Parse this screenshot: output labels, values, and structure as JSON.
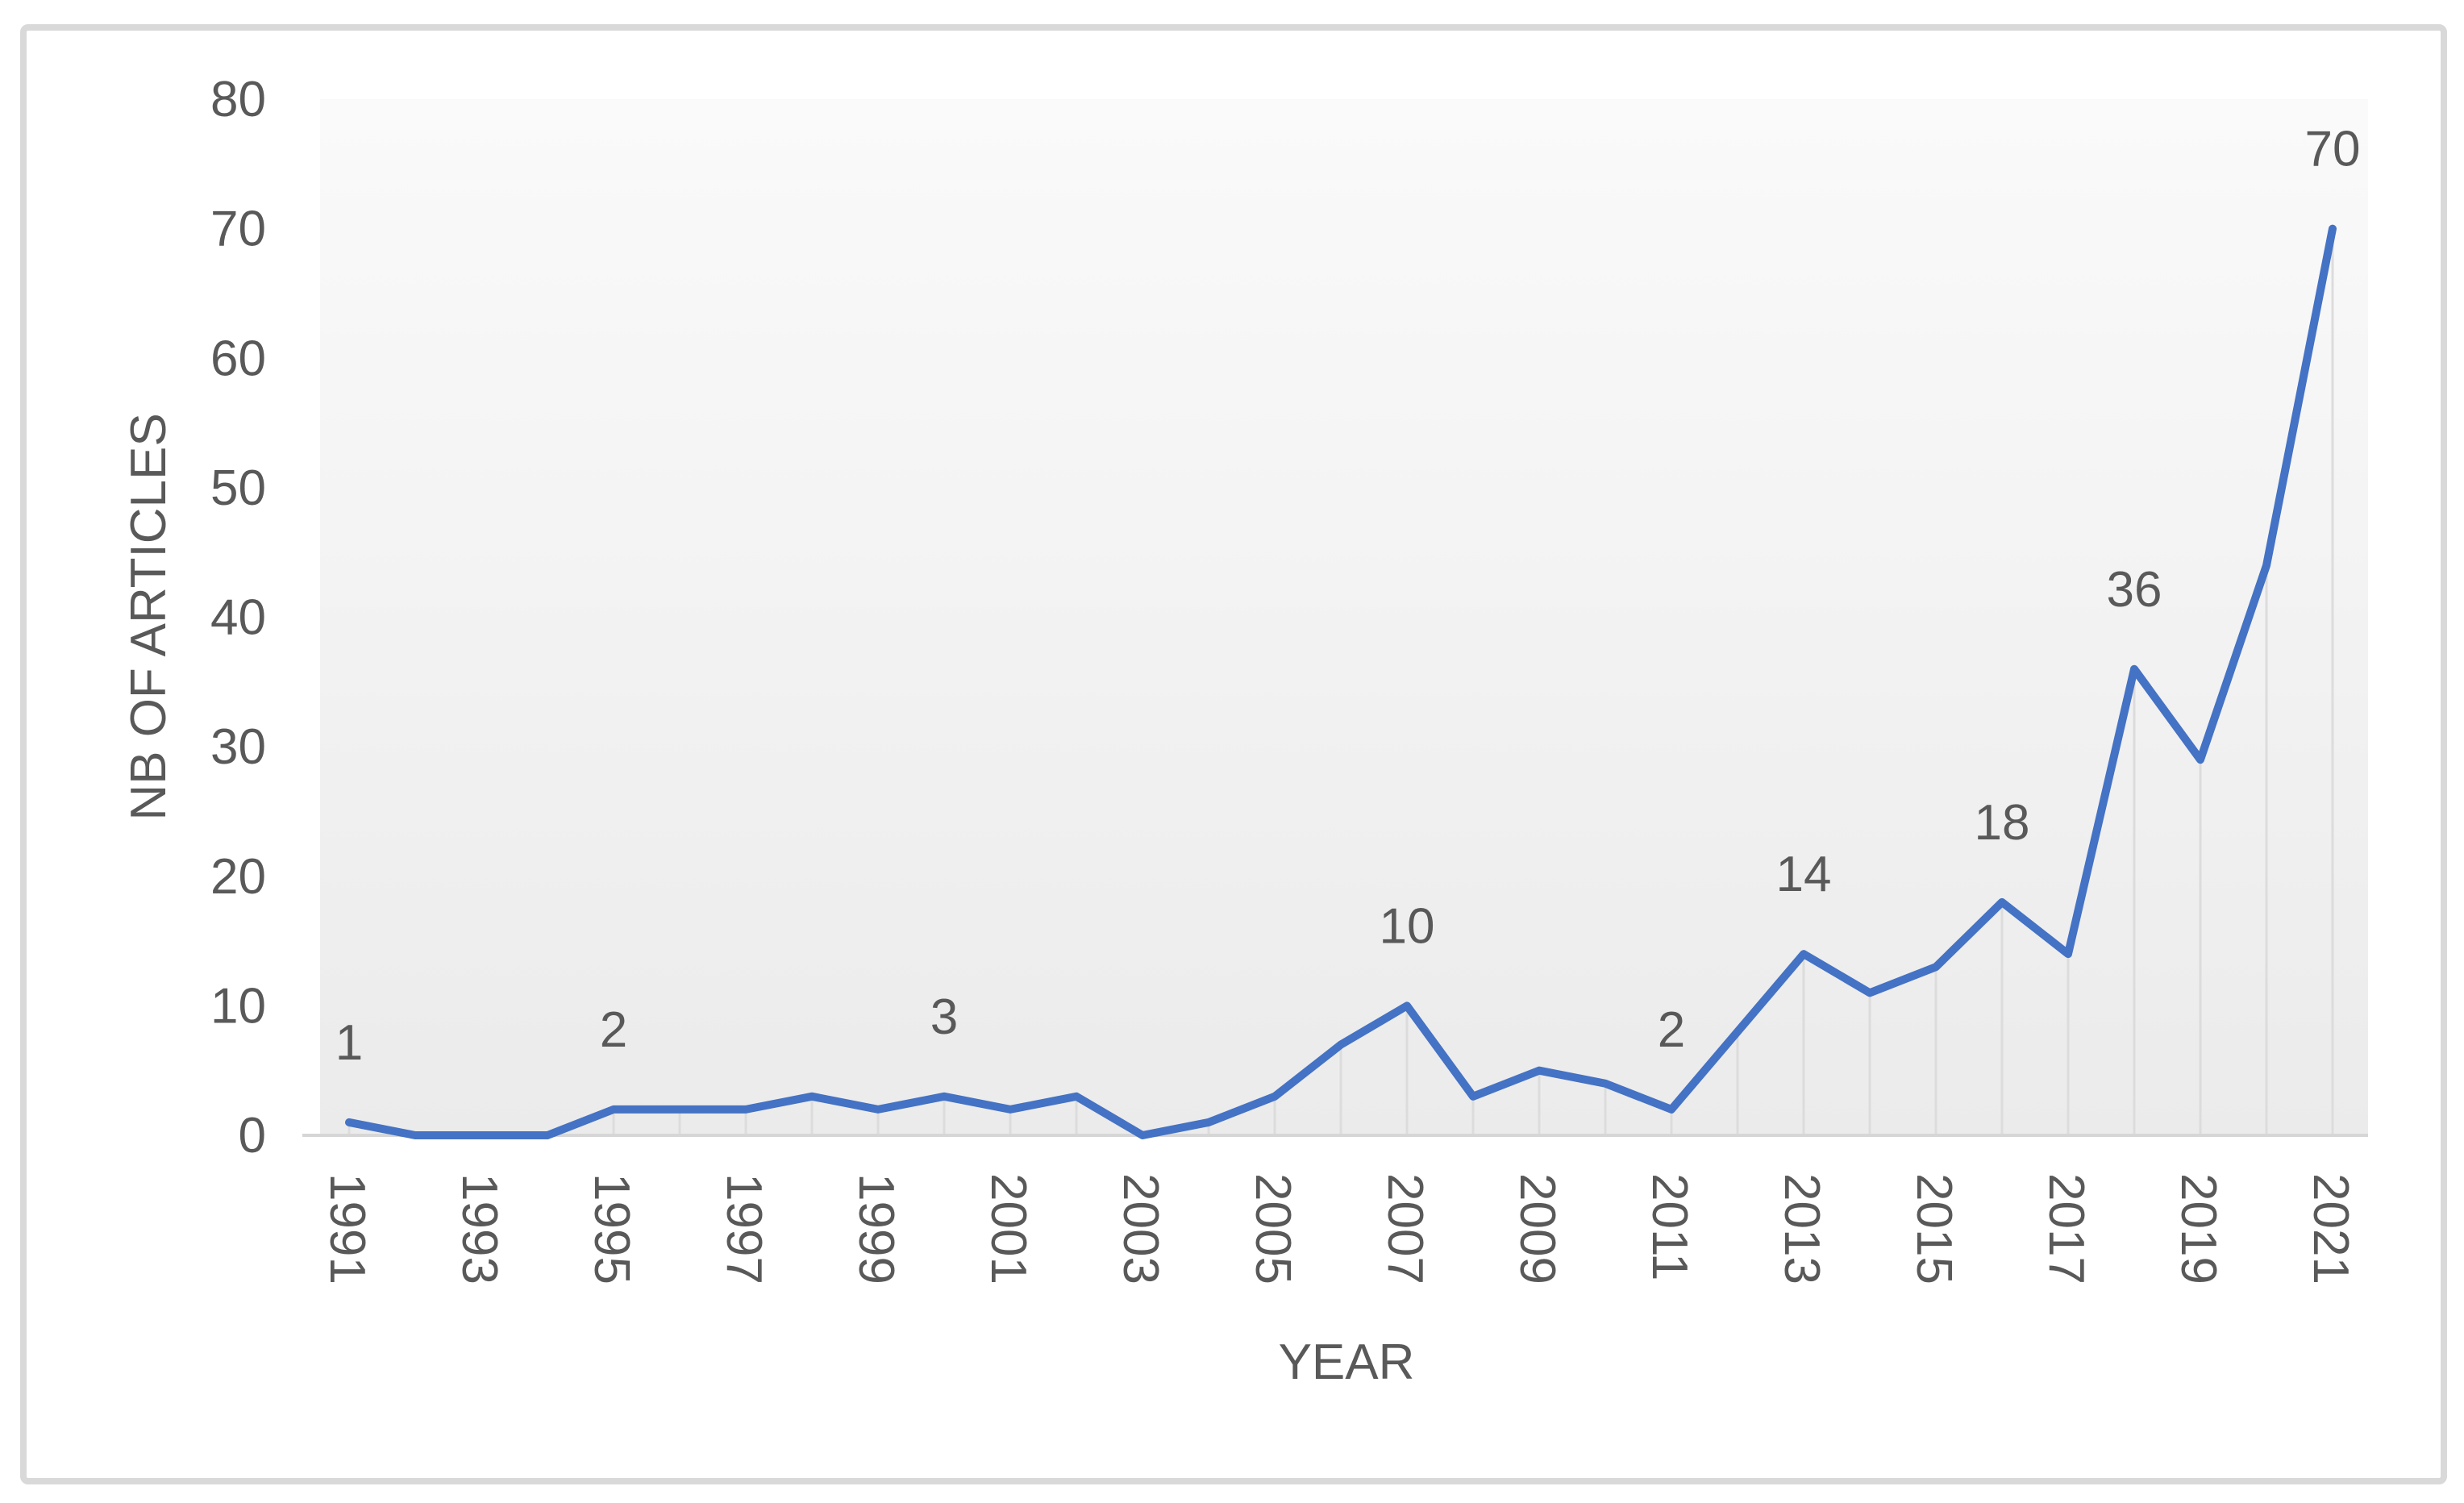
{
  "chart_data": {
    "type": "line",
    "title": "",
    "xlabel": "YEAR",
    "ylabel": "NB OF ARTICLES",
    "x": [
      1991,
      1992,
      1993,
      1994,
      1995,
      1996,
      1997,
      1998,
      1999,
      2000,
      2001,
      2002,
      2003,
      2004,
      2005,
      2006,
      2007,
      2008,
      2009,
      2010,
      2011,
      2012,
      2013,
      2014,
      2015,
      2016,
      2017,
      2018,
      2019,
      2020,
      2021
    ],
    "series": [
      {
        "name": "NB OF ARTICLES",
        "values": [
          1,
          0,
          0,
          0,
          2,
          2,
          2,
          3,
          2,
          3,
          2,
          3,
          0,
          1,
          3,
          7,
          10,
          3,
          5,
          4,
          2,
          8,
          14,
          11,
          13,
          18,
          14,
          36,
          29,
          44,
          70
        ]
      }
    ],
    "point_labels": [
      {
        "x": 1991,
        "label": "1"
      },
      {
        "x": 1995,
        "label": "2"
      },
      {
        "x": 2000,
        "label": "3"
      },
      {
        "x": 2007,
        "label": "10"
      },
      {
        "x": 2011,
        "label": "2"
      },
      {
        "x": 2013,
        "label": "14"
      },
      {
        "x": 2016,
        "label": "18"
      },
      {
        "x": 2018,
        "label": "36"
      },
      {
        "x": 2021,
        "label": "70"
      }
    ],
    "ylim": [
      0,
      80
    ],
    "yticks": [
      0,
      10,
      20,
      30,
      40,
      50,
      60,
      70,
      80
    ],
    "xticks": [
      1991,
      1993,
      1995,
      1997,
      1999,
      2001,
      2003,
      2005,
      2007,
      2009,
      2011,
      2013,
      2015,
      2017,
      2019,
      2021
    ],
    "xtick_rotation": 90,
    "grid": "off",
    "legend": "none",
    "droplines": true,
    "colors": {
      "line": "#4472C4",
      "text": "#595959",
      "axis_line": "#D6D6D6",
      "dropline": "#DCDCDC",
      "plot_bg_top": "#FAFAFA",
      "plot_bg_bottom": "#EBEBEB",
      "figure_border": "#D9D9D9",
      "background": "#FFFFFF"
    }
  }
}
